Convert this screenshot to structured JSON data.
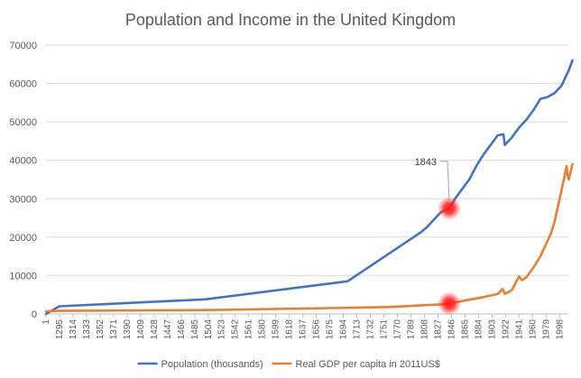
{
  "chart_data": {
    "type": "line",
    "title": "Population and Income in the United Kingdom",
    "xlabel": "",
    "ylabel": "",
    "ylim": [
      0,
      70000
    ],
    "yticks": [
      0,
      10000,
      20000,
      30000,
      40000,
      50000,
      60000,
      70000
    ],
    "x_tick_labels": [
      "1",
      "1295",
      "1314",
      "1333",
      "1352",
      "1371",
      "1390",
      "1409",
      "1428",
      "1447",
      "1466",
      "1485",
      "1504",
      "1523",
      "1542",
      "1561",
      "1580",
      "1599",
      "1618",
      "1637",
      "1656",
      "1675",
      "1694",
      "1713",
      "1732",
      "1751",
      "1770",
      "1789",
      "1808",
      "1827",
      "1846",
      "1865",
      "1884",
      "1903",
      "1922",
      "1941",
      "1960",
      "1979",
      "1998"
    ],
    "grid": "horizontal",
    "legend_position": "bottom",
    "series": [
      {
        "name": "Population (thousands)",
        "color": "#4472C4",
        "points": [
          {
            "x": 1,
            "y": 0
          },
          {
            "x": 1280,
            "y": 2000
          },
          {
            "x": 1500,
            "y": 3800
          },
          {
            "x": 1700,
            "y": 8500
          },
          {
            "x": 1801,
            "y": 21000
          },
          {
            "x": 1811,
            "y": 22500
          },
          {
            "x": 1821,
            "y": 24500
          },
          {
            "x": 1831,
            "y": 26500
          },
          {
            "x": 1843,
            "y": 27500
          },
          {
            "x": 1851,
            "y": 30000
          },
          {
            "x": 1861,
            "y": 32500
          },
          {
            "x": 1871,
            "y": 35000
          },
          {
            "x": 1881,
            "y": 38500
          },
          {
            "x": 1891,
            "y": 41500
          },
          {
            "x": 1901,
            "y": 44000
          },
          {
            "x": 1911,
            "y": 46500
          },
          {
            "x": 1919,
            "y": 46800
          },
          {
            "x": 1921,
            "y": 44000
          },
          {
            "x": 1931,
            "y": 46000
          },
          {
            "x": 1941,
            "y": 48500
          },
          {
            "x": 1951,
            "y": 50500
          },
          {
            "x": 1961,
            "y": 53000
          },
          {
            "x": 1971,
            "y": 56000
          },
          {
            "x": 1981,
            "y": 56500
          },
          {
            "x": 1991,
            "y": 57500
          },
          {
            "x": 2001,
            "y": 59500
          },
          {
            "x": 2011,
            "y": 63500
          },
          {
            "x": 2016,
            "y": 66000
          }
        ]
      },
      {
        "name": "Real GDP per capita in 2011US$",
        "color": "#ED7D31",
        "points": [
          {
            "x": 1,
            "y": 700
          },
          {
            "x": 1280,
            "y": 800
          },
          {
            "x": 1500,
            "y": 1000
          },
          {
            "x": 1700,
            "y": 1600
          },
          {
            "x": 1760,
            "y": 1800
          },
          {
            "x": 1801,
            "y": 2200
          },
          {
            "x": 1831,
            "y": 2500
          },
          {
            "x": 1843,
            "y": 2700
          },
          {
            "x": 1851,
            "y": 3000
          },
          {
            "x": 1871,
            "y": 3700
          },
          {
            "x": 1891,
            "y": 4400
          },
          {
            "x": 1901,
            "y": 4800
          },
          {
            "x": 1911,
            "y": 5200
          },
          {
            "x": 1918,
            "y": 6500
          },
          {
            "x": 1921,
            "y": 5200
          },
          {
            "x": 1931,
            "y": 6200
          },
          {
            "x": 1941,
            "y": 9800
          },
          {
            "x": 1945,
            "y": 8800
          },
          {
            "x": 1951,
            "y": 9500
          },
          {
            "x": 1961,
            "y": 12000
          },
          {
            "x": 1971,
            "y": 15000
          },
          {
            "x": 1981,
            "y": 19000
          },
          {
            "x": 1986,
            "y": 21000
          },
          {
            "x": 1991,
            "y": 24000
          },
          {
            "x": 1998,
            "y": 30000
          },
          {
            "x": 2004,
            "y": 35000
          },
          {
            "x": 2008,
            "y": 38500
          },
          {
            "x": 2009,
            "y": 36500
          },
          {
            "x": 2011,
            "y": 35000
          },
          {
            "x": 2016,
            "y": 39000
          }
        ]
      }
    ],
    "annotations": [
      {
        "label": "1843",
        "x": 1843,
        "y": 27500
      }
    ],
    "highlights": [
      {
        "x": 1843,
        "y": 27500
      },
      {
        "x": 1843,
        "y": 2700
      }
    ]
  }
}
